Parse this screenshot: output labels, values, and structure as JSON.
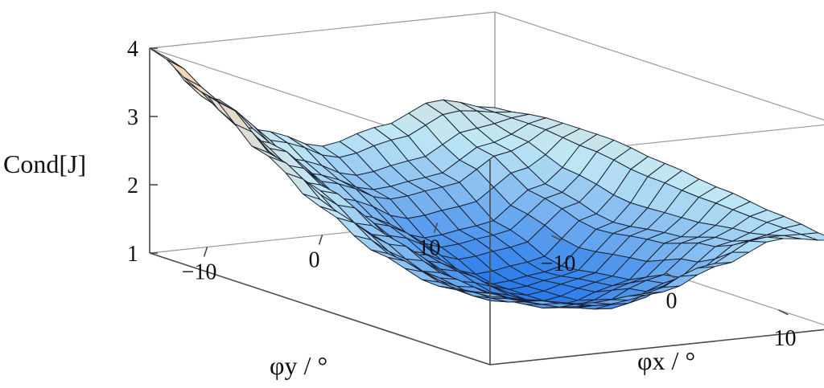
{
  "chart_data": {
    "type": "surface",
    "zlabel": "Cond[J]",
    "xlabel": "φx / °",
    "ylabel": "φy / °",
    "x_range": [
      -15,
      15
    ],
    "y_range": [
      -15,
      15
    ],
    "z_range": [
      1,
      4
    ],
    "x_ticks": [
      -10,
      0,
      10
    ],
    "y_ticks": [
      -10,
      0,
      10
    ],
    "z_ticks": [
      1,
      2,
      3,
      4
    ],
    "x_tick_labels": [
      "−10",
      "0",
      "10"
    ],
    "y_tick_labels": [
      "−10",
      "0",
      "10"
    ],
    "z_tick_labels": [
      "1",
      "2",
      "3",
      "4"
    ],
    "grid": false,
    "colors": {
      "low": "#2b7bea",
      "mid": "#bfe7f5",
      "high": "#f6d6b5",
      "mesh": "#1b2233"
    },
    "surface_samples": {
      "x": [
        -15,
        -10,
        -5,
        0,
        5,
        10,
        15
      ],
      "y": [
        -15,
        -10,
        -5,
        0,
        5,
        10,
        15
      ],
      "z": [
        [
          4.0,
          3.6,
          3.0,
          2.5,
          2.1,
          1.9,
          2.0
        ],
        [
          3.2,
          2.8,
          2.4,
          2.0,
          1.7,
          1.6,
          1.8
        ],
        [
          2.6,
          2.2,
          1.8,
          1.5,
          1.3,
          1.4,
          1.7
        ],
        [
          2.3,
          1.9,
          1.4,
          1.1,
          1.1,
          1.3,
          1.8
        ],
        [
          2.5,
          2.0,
          1.5,
          1.2,
          1.3,
          1.6,
          2.1
        ],
        [
          2.8,
          2.4,
          2.0,
          1.8,
          1.9,
          2.1,
          2.4
        ],
        [
          2.6,
          2.7,
          2.7,
          2.6,
          2.5,
          2.4,
          2.3
        ]
      ]
    }
  }
}
